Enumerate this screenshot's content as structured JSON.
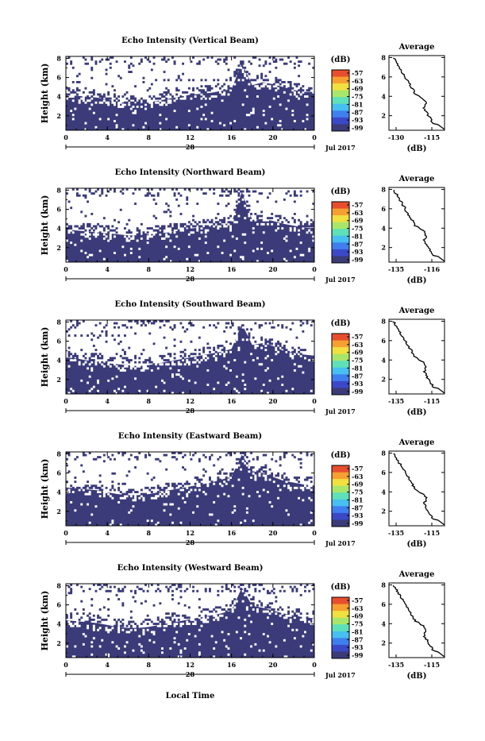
{
  "page": {
    "xlabel": "Local Time",
    "avg_title": "Average",
    "avg_xlabel": "(dB)",
    "colorbar_label": "(dB)",
    "date_label": "Jul 2017",
    "day_label": "28",
    "y_label": "Height (km)"
  },
  "colors": {
    "background_echo": "#3b3b7a",
    "colormap": [
      "#3b3b7a",
      "#3b49c8",
      "#3f7ff0",
      "#46c0f0",
      "#5ee0b8",
      "#a8e66a",
      "#f0e040",
      "#f5a030",
      "#e84e2e"
    ]
  },
  "chart_data": [
    {
      "type": "heatmap",
      "title": "Echo Intensity (Vertical Beam)",
      "x_ticks": [
        "0",
        "4",
        "8",
        "12",
        "16",
        "20",
        "0"
      ],
      "y_ticks": [
        "2",
        "4",
        "6",
        "8"
      ],
      "ylim": [
        0.5,
        8.2
      ],
      "colorbar_ticks": [
        "-57",
        "-63",
        "-69",
        "-75",
        "-81",
        "-87",
        "-93",
        "-99"
      ],
      "boundary_height_km": [
        4.1,
        4.1,
        4.0,
        3.9,
        3.7,
        3.5,
        3.3,
        3.3,
        3.4,
        3.6,
        3.8,
        4.0,
        4.2,
        4.3,
        4.4,
        4.6,
        4.8,
        7.5,
        5.2,
        5.5,
        5.3,
        5.0,
        4.7,
        4.5,
        4.5
      ],
      "average": {
        "xlim": [
          -130,
          -110
        ],
        "x_ticks": [
          "-130",
          "-115"
        ],
        "y_ticks": [
          "2",
          "4",
          "6",
          "8"
        ]
      }
    },
    {
      "type": "heatmap",
      "title": "Echo Intensity (Northward Beam)",
      "x_ticks": [
        "0",
        "4",
        "8",
        "12",
        "16",
        "20",
        "0"
      ],
      "y_ticks": [
        "2",
        "4",
        "6",
        "8"
      ],
      "ylim": [
        0.5,
        8.2
      ],
      "colorbar_ticks": [
        "-57",
        "-63",
        "-69",
        "-75",
        "-81",
        "-87",
        "-93",
        "-99"
      ],
      "boundary_height_km": [
        3.9,
        3.8,
        3.7,
        3.6,
        3.5,
        3.4,
        3.3,
        3.3,
        3.4,
        3.5,
        3.6,
        3.8,
        4.0,
        4.1,
        4.2,
        4.4,
        4.6,
        7.8,
        4.9,
        5.0,
        4.8,
        4.5,
        4.3,
        4.1,
        4.0
      ],
      "average": {
        "xlim": [
          -135,
          -116
        ],
        "x_ticks": [
          "-135",
          "-116"
        ],
        "y_ticks": [
          "2",
          "4",
          "6",
          "8"
        ]
      }
    },
    {
      "type": "heatmap",
      "title": "Echo Intensity (Southward Beam)",
      "x_ticks": [
        "0",
        "4",
        "8",
        "12",
        "16",
        "20",
        "0"
      ],
      "y_ticks": [
        "2",
        "4",
        "6",
        "8"
      ],
      "ylim": [
        0.5,
        8.2
      ],
      "colorbar_ticks": [
        "-57",
        "-63",
        "-69",
        "-75",
        "-81",
        "-87",
        "-93",
        "-99"
      ],
      "boundary_height_km": [
        4.3,
        4.2,
        4.0,
        3.9,
        3.7,
        3.6,
        3.5,
        3.4,
        3.5,
        3.7,
        3.9,
        4.1,
        4.3,
        4.5,
        4.7,
        4.9,
        5.2,
        7.8,
        5.6,
        5.8,
        5.5,
        5.0,
        4.8,
        4.6,
        4.5
      ],
      "average": {
        "xlim": [
          -135,
          -115
        ],
        "x_ticks": [
          "-135",
          "-115"
        ],
        "y_ticks": [
          "2",
          "4",
          "6",
          "8"
        ]
      }
    },
    {
      "type": "heatmap",
      "title": "Echo Intensity (Eastward Beam)",
      "x_ticks": [
        "0",
        "4",
        "8",
        "12",
        "16",
        "20",
        "0"
      ],
      "y_ticks": [
        "2",
        "4",
        "6",
        "8"
      ],
      "ylim": [
        0.5,
        8.2
      ],
      "colorbar_ticks": [
        "-57",
        "-63",
        "-69",
        "-75",
        "-81",
        "-87",
        "-93",
        "-99"
      ],
      "boundary_height_km": [
        4.5,
        4.4,
        4.3,
        4.2,
        4.0,
        3.8,
        3.7,
        3.7,
        3.8,
        4.0,
        4.2,
        4.4,
        4.6,
        4.8,
        5.0,
        5.3,
        5.6,
        7.9,
        6.2,
        6.0,
        5.6,
        5.2,
        5.0,
        4.8,
        4.7
      ],
      "average": {
        "xlim": [
          -135,
          -115
        ],
        "x_ticks": [
          "-135",
          "-115"
        ],
        "y_ticks": [
          "2",
          "4",
          "6",
          "8"
        ]
      }
    },
    {
      "type": "heatmap",
      "title": "Echo Intensity (Westward Beam)",
      "x_ticks": [
        "0",
        "4",
        "8",
        "12",
        "16",
        "20",
        "0"
      ],
      "y_ticks": [
        "2",
        "4",
        "6",
        "8"
      ],
      "ylim": [
        0.5,
        8.2
      ],
      "colorbar_ticks": [
        "-57",
        "-63",
        "-69",
        "-75",
        "-81",
        "-87",
        "-93",
        "-99"
      ],
      "boundary_height_km": [
        4.4,
        4.3,
        4.2,
        4.1,
        3.9,
        3.7,
        3.6,
        3.6,
        3.7,
        3.9,
        4.1,
        4.3,
        4.5,
        4.7,
        4.9,
        5.1,
        5.4,
        7.8,
        5.9,
        5.7,
        5.4,
        5.1,
        4.9,
        4.7,
        4.6
      ],
      "average": {
        "xlim": [
          -135,
          -115
        ],
        "x_ticks": [
          "-135",
          "-115"
        ],
        "y_ticks": [
          "2",
          "4",
          "6",
          "8"
        ]
      }
    }
  ]
}
